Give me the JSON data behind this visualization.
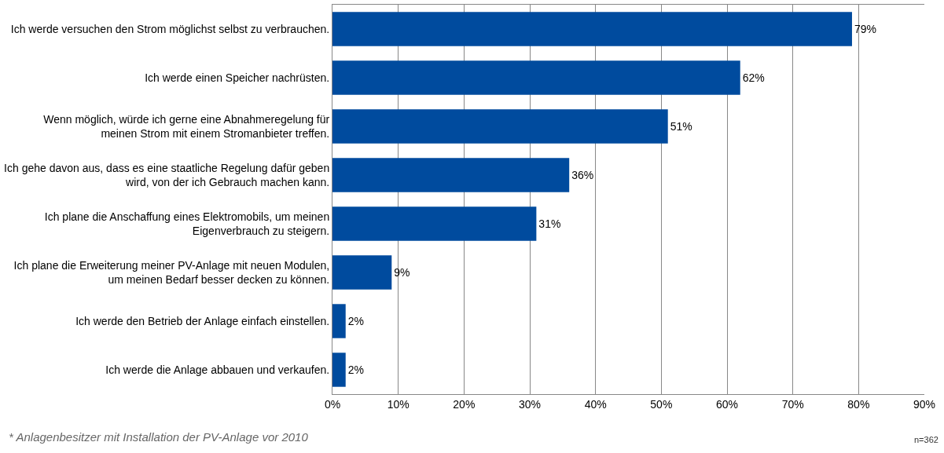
{
  "chart_data": {
    "type": "bar",
    "orientation": "horizontal",
    "categories": [
      "Ich werde versuchen den Strom möglichst selbst zu verbrauchen.",
      "Ich werde einen Speicher nachrüsten.",
      "Wenn möglich, würde ich gerne eine Abnahmeregelung für\nmeinen Strom mit einem Stromanbieter treffen.",
      "Ich gehe davon aus, dass es eine staatliche Regelung dafür geben\nwird, von der ich Gebrauch machen kann.",
      "Ich plane die Anschaffung eines Elektromobils, um meinen\nEigenverbrauch zu steigern.",
      "Ich plane die Erweiterung meiner PV-Anlage mit neuen Modulen,\num meinen Bedarf besser decken zu können.",
      "Ich werde den Betrieb der Anlage einfach einstellen.",
      "Ich werde die Anlage abbauen und verkaufen."
    ],
    "values": [
      79,
      62,
      51,
      36,
      31,
      9,
      2,
      2
    ],
    "value_labels": [
      "79%",
      "62%",
      "51%",
      "36%",
      "31%",
      "9%",
      "2%",
      "2%"
    ],
    "color": "#004b9e",
    "xlim": [
      0,
      90
    ],
    "xticks": [
      {
        "value": 0,
        "label": "0%"
      },
      {
        "value": 10,
        "label": "10%"
      },
      {
        "value": 20,
        "label": "20%"
      },
      {
        "value": 30,
        "label": "30%"
      },
      {
        "value": 40,
        "label": "40%"
      },
      {
        "value": 50,
        "label": "50%"
      },
      {
        "value": 60,
        "label": "60%"
      },
      {
        "value": 70,
        "label": "70%"
      },
      {
        "value": 80,
        "label": "80%"
      },
      {
        "value": 90,
        "label": "90%"
      }
    ],
    "grid": "x",
    "legend": false,
    "annotations": [
      "* Anlagenbesitzer mit Installation der PV-Anlage vor 2010",
      "n=362"
    ]
  }
}
